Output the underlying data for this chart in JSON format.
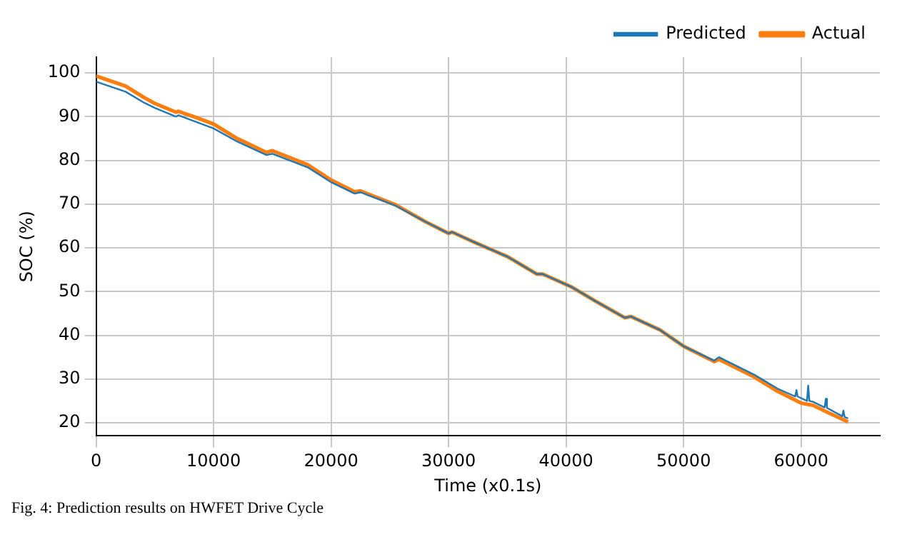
{
  "chart_data": {
    "type": "line",
    "xlabel": "Time (x0.1s)",
    "ylabel": "SOC (%)",
    "annotations": [
      "Fig. 4: Prediction results on HWFET Drive Cycle"
    ],
    "xlim": [
      0,
      66700
    ],
    "ylim": [
      17,
      103.6
    ],
    "xticks": [
      0,
      10000,
      20000,
      30000,
      40000,
      50000,
      60000
    ],
    "yticks": [
      20,
      30,
      40,
      50,
      60,
      70,
      80,
      90,
      100
    ],
    "grid": true,
    "legend": "top right",
    "marker": "none",
    "line_style": "solid",
    "series": [
      {
        "name": "Predicted",
        "color": "#1f77b4",
        "x": [
          0,
          2500,
          4000,
          5000,
          6800,
          7000,
          8500,
          10000,
          12000,
          14500,
          15000,
          18000,
          20000,
          22000,
          22500,
          25500,
          28000,
          30000,
          30300,
          32000,
          35000,
          37500,
          38000,
          40500,
          42500,
          45000,
          45500,
          48000,
          50000,
          52600,
          53000,
          56000,
          58000,
          59500,
          59600,
          59700,
          60500,
          60600,
          60700,
          61000,
          62000,
          62100,
          62200,
          63500,
          63600,
          63700,
          64000
        ],
        "values": [
          98,
          95.7,
          93.3,
          92,
          90,
          90.3,
          88.8,
          87.3,
          84.3,
          81.2,
          81.5,
          78.4,
          75,
          72.4,
          72.7,
          69.6,
          66,
          63.3,
          63.6,
          61.5,
          58,
          54,
          54,
          51,
          47.8,
          44,
          44.3,
          41.2,
          37.5,
          34.2,
          35,
          31,
          27.8,
          26,
          27.5,
          26,
          25,
          28.5,
          25,
          24.8,
          23.5,
          25.5,
          23.4,
          21.5,
          22.8,
          21.3,
          21
        ]
      },
      {
        "name": "Actual",
        "color": "#ff7f0e",
        "x": [
          0,
          2500,
          4000,
          5000,
          6800,
          7000,
          8500,
          10000,
          12000,
          14500,
          15000,
          18000,
          20000,
          22000,
          22500,
          25500,
          28000,
          30000,
          30300,
          32000,
          35000,
          37500,
          38000,
          40500,
          42500,
          45000,
          45500,
          48000,
          50000,
          52600,
          53000,
          56000,
          58000,
          60000,
          61000,
          62000,
          64000
        ],
        "values": [
          99.3,
          97,
          94.5,
          93,
          91,
          91.2,
          89.8,
          88.3,
          85,
          81.8,
          82.2,
          79,
          75.5,
          72.8,
          73,
          69.8,
          66,
          63.3,
          63.6,
          61.5,
          58,
          54,
          54,
          51,
          47.8,
          44,
          44.3,
          41.2,
          37.5,
          34,
          34.5,
          30.5,
          27.2,
          24.5,
          24,
          22.7,
          20.2
        ]
      }
    ]
  }
}
